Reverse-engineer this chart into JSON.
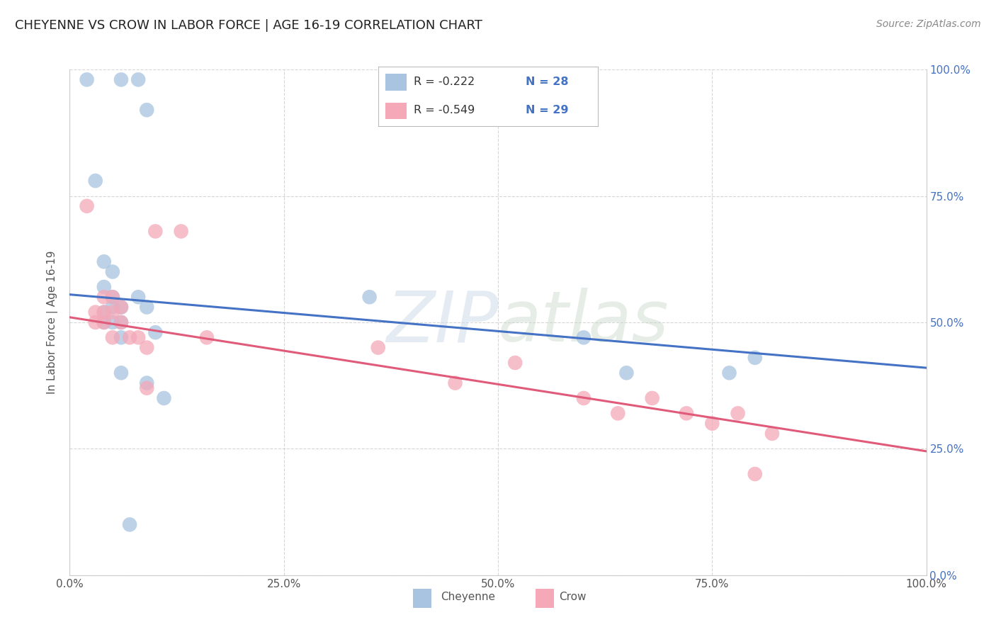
{
  "title": "CHEYENNE VS CROW IN LABOR FORCE | AGE 16-19 CORRELATION CHART",
  "source": "Source: ZipAtlas.com",
  "ylabel": "In Labor Force | Age 16-19",
  "xlim": [
    0.0,
    1.0
  ],
  "ylim": [
    0.0,
    1.0
  ],
  "xticks": [
    0.0,
    0.25,
    0.5,
    0.75,
    1.0
  ],
  "yticks": [
    0.0,
    0.25,
    0.5,
    0.75,
    1.0
  ],
  "xtick_labels": [
    "0.0%",
    "25.0%",
    "50.0%",
    "75.0%",
    "100.0%"
  ],
  "ytick_labels_right": [
    "0.0%",
    "25.0%",
    "50.0%",
    "75.0%",
    "100.0%"
  ],
  "cheyenne_color": "#a8c4e0",
  "crow_color": "#f4a8b8",
  "cheyenne_line_color": "#4472c4",
  "crow_line_color": "#e05a7a",
  "legend_R_cheyenne": "R = -0.222",
  "legend_N_cheyenne": "N = 28",
  "legend_R_crow": "R = -0.549",
  "legend_N_crow": "N = 29",
  "cheyenne_x": [
    0.02,
    0.06,
    0.08,
    0.09,
    0.03,
    0.04,
    0.05,
    0.04,
    0.05,
    0.05,
    0.04,
    0.04,
    0.05,
    0.06,
    0.06,
    0.06,
    0.08,
    0.09,
    0.06,
    0.09,
    0.1,
    0.11,
    0.35,
    0.6,
    0.65,
    0.77,
    0.8,
    0.07
  ],
  "cheyenne_y": [
    0.98,
    0.98,
    0.98,
    0.92,
    0.78,
    0.62,
    0.6,
    0.57,
    0.55,
    0.53,
    0.52,
    0.5,
    0.5,
    0.53,
    0.5,
    0.47,
    0.55,
    0.53,
    0.4,
    0.38,
    0.48,
    0.35,
    0.55,
    0.47,
    0.4,
    0.4,
    0.43,
    0.1
  ],
  "crow_x": [
    0.02,
    0.03,
    0.03,
    0.04,
    0.04,
    0.04,
    0.05,
    0.05,
    0.05,
    0.06,
    0.06,
    0.07,
    0.08,
    0.09,
    0.1,
    0.13,
    0.16,
    0.36,
    0.45,
    0.52,
    0.6,
    0.64,
    0.68,
    0.72,
    0.75,
    0.78,
    0.8,
    0.82,
    0.09
  ],
  "crow_y": [
    0.73,
    0.52,
    0.5,
    0.55,
    0.52,
    0.5,
    0.55,
    0.52,
    0.47,
    0.53,
    0.5,
    0.47,
    0.47,
    0.45,
    0.68,
    0.68,
    0.47,
    0.45,
    0.38,
    0.42,
    0.35,
    0.32,
    0.35,
    0.32,
    0.3,
    0.32,
    0.2,
    0.28,
    0.37
  ],
  "cheyenne_line_x": [
    0.0,
    1.0
  ],
  "cheyenne_line_y": [
    0.555,
    0.41
  ],
  "crow_line_x": [
    0.0,
    1.0
  ],
  "crow_line_y": [
    0.51,
    0.245
  ],
  "watermark_zip": "ZIP",
  "watermark_atlas": "atlas",
  "background_color": "#ffffff",
  "grid_color": "#cccccc",
  "title_color": "#333333",
  "axis_color": "#555555",
  "right_yaxis_color": "#4472c4",
  "legend_text_color": "#333333",
  "legend_num_color": "#4472c4"
}
